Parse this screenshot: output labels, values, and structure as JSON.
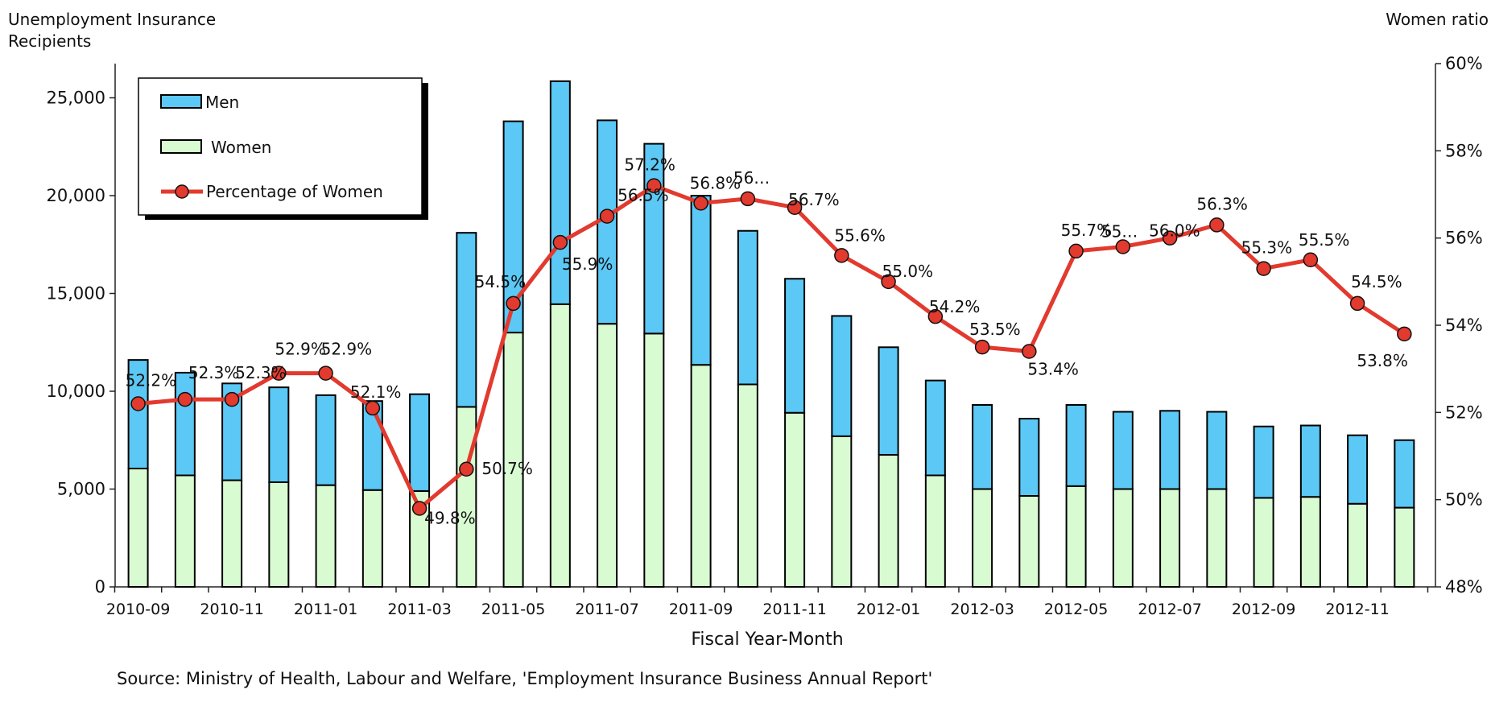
{
  "chart_data": {
    "type": "bar",
    "stacked": true,
    "ylabel": "Unemployment Insurance Recipients",
    "y2label": "Women ratio",
    "xlabel": "Fiscal Year-Month",
    "source": "Source: Ministry of Health, Labour and Welfare, 'Employment Insurance Business Annual Report'",
    "ylim": [
      0,
      27000
    ],
    "y2lim": [
      48,
      60
    ],
    "yticks": [
      0,
      5000,
      10000,
      15000,
      20000,
      25000
    ],
    "ytick_labels": [
      "0",
      "5,000",
      "10,000",
      "15,000",
      "20,000",
      "25,000"
    ],
    "y2ticks": [
      48,
      50,
      52,
      54,
      56,
      58,
      60
    ],
    "y2tick_labels": [
      "48%",
      "50%",
      "52%",
      "54%",
      "56%",
      "58%",
      "60%"
    ],
    "legend_position": "top-left",
    "categories": [
      "2010-09",
      "2010-10",
      "2010-11",
      "2010-12",
      "2011-01",
      "2011-02",
      "2011-03",
      "2011-04",
      "2011-05",
      "2011-06",
      "2011-07",
      "2011-08",
      "2011-09",
      "2011-10",
      "2011-11",
      "2011-12",
      "2012-01",
      "2012-02",
      "2012-03",
      "2012-04",
      "2012-05",
      "2012-06",
      "2012-07",
      "2012-08",
      "2012-09",
      "2012-10",
      "2012-11",
      "2012-12"
    ],
    "x_tick_labels": [
      "2010-09",
      "",
      "2010-11",
      "",
      "2011-01",
      "",
      "2011-03",
      "",
      "2011-05",
      "",
      "2011-07",
      "",
      "2011-09",
      "",
      "2011-11",
      "",
      "2012-01",
      "",
      "2012-03",
      "",
      "2012-05",
      "",
      "2012-07",
      "",
      "2012-09",
      "",
      "2012-11",
      ""
    ],
    "series": [
      {
        "name": "Men",
        "kind": "bar",
        "color": "#5bc8f5",
        "values": [
          5550,
          5250,
          4950,
          4850,
          4600,
          4550,
          4950,
          8900,
          10800,
          11400,
          10400,
          9700,
          8650,
          7850,
          6850,
          6150,
          5500,
          4850,
          4300,
          3950,
          4150,
          3950,
          4000,
          3950,
          3650,
          3650,
          3500,
          3450
        ]
      },
      {
        "name": "Women",
        "kind": "bar",
        "color": "#d9fbd2",
        "values": [
          6050,
          5700,
          5450,
          5350,
          5200,
          4950,
          4900,
          9200,
          13000,
          14450,
          13450,
          12950,
          11350,
          10350,
          8900,
          7700,
          6750,
          5700,
          5000,
          4650,
          5150,
          5000,
          5000,
          5000,
          4550,
          4600,
          4250,
          4050
        ]
      },
      {
        "name": "Percentage of Women",
        "kind": "line",
        "axis": "right",
        "color": "#e23a2e",
        "values": [
          52.2,
          52.3,
          52.3,
          52.9,
          52.9,
          52.1,
          49.8,
          50.7,
          54.5,
          55.9,
          56.5,
          57.2,
          56.8,
          56.9,
          56.7,
          55.6,
          55.0,
          54.2,
          53.5,
          53.4,
          55.7,
          55.8,
          56.0,
          56.3,
          55.3,
          55.5,
          54.5,
          53.8
        ],
        "labels": [
          "52.2%",
          "52.3%",
          "52.3%",
          "52.9%",
          "52.9%",
          "52.1%",
          "49.8%",
          "50.7%",
          "54.5%",
          "55.9%",
          "56.5%",
          "57.2%",
          "56.8%",
          "56…",
          "56.7%",
          "55.6%",
          "55.0%",
          "54.2%",
          "53.5%",
          "53.4%",
          "55.7%",
          "55…",
          "56.0%",
          "56.3%",
          "55.3%",
          "55.5%",
          "54.5%",
          "53.8%"
        ]
      }
    ]
  }
}
